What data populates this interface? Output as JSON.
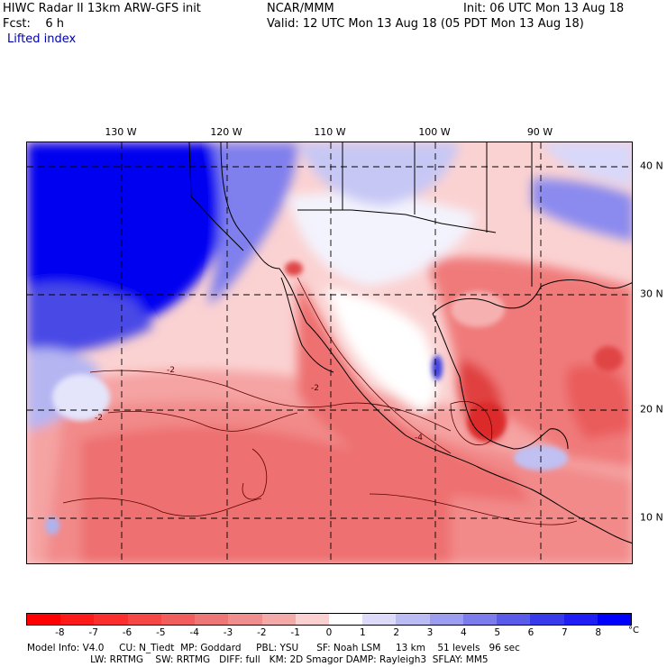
{
  "header": {
    "line1_left": "HIWC Radar II 13km ARW-GFS init",
    "line1_mid": "NCAR/MMM",
    "line1_right": "Init: 06 UTC Mon 13 Aug 18",
    "line2_left": "Fcst:    6 h",
    "line2_right": "Valid: 12 UTC Mon 13 Aug 18 (05 PDT Mon 13 Aug 18)",
    "field_name": "Lifted index"
  },
  "map": {
    "lon_labels": [
      "130 W",
      "120 W",
      "110 W",
      "100 W",
      "90 W"
    ],
    "lat_labels": [
      "40 N",
      "30 N",
      "20 N",
      "10 N"
    ],
    "grid_style": "dashed",
    "contour_labels": [
      "-2",
      "-2",
      "-2",
      "-4"
    ]
  },
  "colorbar": {
    "ticks": [
      "-8",
      "-7",
      "-6",
      "-5",
      "-4",
      "-3",
      "-2",
      "-1",
      "0",
      "1",
      "2",
      "3",
      "4",
      "5",
      "6",
      "7",
      "8"
    ],
    "unit": "°C",
    "colors": [
      "#ff0000",
      "#ff1a1a",
      "#fc2e2e",
      "#f74646",
      "#f25e5e",
      "#ee7676",
      "#f08e8e",
      "#f5aaaa",
      "#fbd0d0",
      "#ffffff",
      "#dcdcfa",
      "#bcbcf5",
      "#9c9cf0",
      "#7c7ced",
      "#5a5aeb",
      "#3a3aed",
      "#1e1ef5",
      "#0000ff"
    ]
  },
  "model_info": {
    "line1": "Model Info: V4.0     CU: N_Tiedt  MP: Goddard     PBL: YSU      SF: Noah LSM     13 km    51 levels   96 sec",
    "line2": "                     LW: RRTMG    SW: RRTMG   DIFF: full   KM: 2D Smagor DAMP: Rayleigh3  SFLAY: MM5"
  }
}
